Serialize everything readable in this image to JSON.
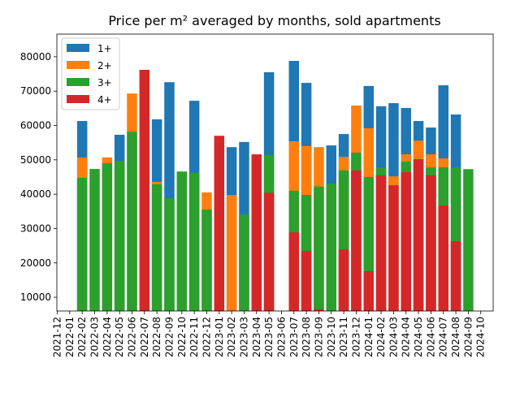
{
  "chart_data": {
    "type": "bar",
    "title": "Price per m² averaged by months, sold apartments",
    "categories": [
      "2021-12",
      "2022-01",
      "2022-02",
      "2022-03",
      "2022-04",
      "2022-05",
      "2022-06",
      "2022-07",
      "2022-08",
      "2022-09",
      "2022-10",
      "2022-11",
      "2022-12",
      "2023-01",
      "2023-02",
      "2023-03",
      "2023-04",
      "2023-05",
      "2023-06",
      "2023-07",
      "2023-08",
      "2023-09",
      "2023-10",
      "2023-11",
      "2023-12",
      "2024-01",
      "2024-02",
      "2024-03",
      "2024-04",
      "2024-05",
      "2024-06",
      "2024-07",
      "2024-08",
      "2024-09",
      "2024-10"
    ],
    "series": [
      {
        "name": "1+",
        "color": "#1f77b4",
        "values": [
          null,
          null,
          61300,
          null,
          null,
          57300,
          null,
          null,
          61800,
          72600,
          null,
          67200,
          null,
          null,
          53700,
          55200,
          null,
          75500,
          null,
          78800,
          72400,
          null,
          54200,
          57500,
          null,
          71500,
          65600,
          66500,
          65100,
          61300,
          59400,
          71700,
          63200,
          null,
          null
        ]
      },
      {
        "name": "2+",
        "color": "#ff7f0e",
        "values": [
          null,
          null,
          50700,
          null,
          50700,
          null,
          69300,
          null,
          43600,
          null,
          null,
          null,
          40500,
          null,
          39800,
          null,
          null,
          null,
          null,
          55400,
          54000,
          53700,
          null,
          50900,
          65800,
          59200,
          null,
          45200,
          51600,
          55600,
          51600,
          50400,
          null,
          null,
          null
        ]
      },
      {
        "name": "3+",
        "color": "#2ca02c",
        "values": [
          null,
          null,
          44750,
          47350,
          49000,
          49700,
          58200,
          null,
          42900,
          38800,
          46600,
          46200,
          35500,
          null,
          null,
          34100,
          null,
          51400,
          null,
          41000,
          39800,
          42200,
          43100,
          46900,
          52100,
          45000,
          47800,
          null,
          49500,
          null,
          47800,
          47800,
          47800,
          47300,
          null
        ]
      },
      {
        "name": "4+",
        "color": "#d62728",
        "values": [
          null,
          null,
          null,
          null,
          null,
          null,
          null,
          76200,
          null,
          null,
          null,
          null,
          null,
          57000,
          null,
          null,
          51600,
          40400,
          null,
          28900,
          23500,
          6500,
          null,
          23900,
          46900,
          17600,
          45500,
          42600,
          46400,
          50200,
          45500,
          36700,
          26300,
          null,
          null
        ]
      }
    ],
    "ylim": [
      6000,
      86600
    ],
    "yticks": [
      10000,
      20000,
      30000,
      40000,
      50000,
      60000,
      70000,
      80000
    ],
    "legend": "upper left"
  }
}
